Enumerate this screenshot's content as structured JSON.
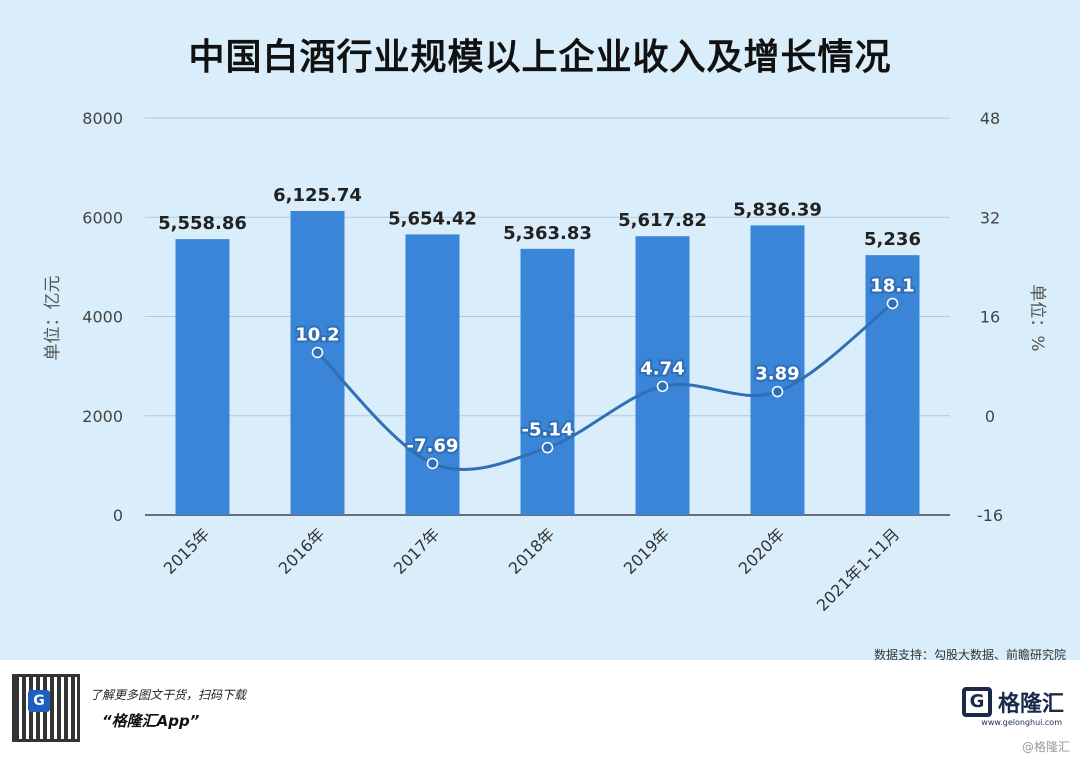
{
  "title": "中国白酒行业规模以上企业收入及增长情况",
  "chart_data": {
    "type": "bar",
    "title": "中国白酒行业规模以上企业收入及增长情况",
    "categories": [
      "2015年",
      "2016年",
      "2017年",
      "2018年",
      "2019年",
      "2020年",
      "2021年1-11月"
    ],
    "series": [
      {
        "type": "bar",
        "values": [
          5558.86,
          6125.74,
          5654.42,
          5363.83,
          5617.82,
          5836.39,
          5236
        ],
        "labels": [
          "5,558.86",
          "6,125.74",
          "5,654.42",
          "5,363.83",
          "5,617.82",
          "5,836.39",
          "5,236"
        ]
      },
      {
        "type": "line",
        "axis": "right",
        "values": [
          null,
          10.2,
          -7.69,
          -5.14,
          4.74,
          3.89,
          18.1
        ],
        "labels": [
          "",
          "10.2",
          "-7.69",
          "-5.14",
          "4.74",
          "3.89",
          "18.1"
        ]
      }
    ],
    "ylabel": "单位：亿元",
    "y2label": "单位：%",
    "ylim": [
      0,
      8000
    ],
    "y2lim": [
      -16,
      48
    ],
    "yticks": [
      "0",
      "2000",
      "4000",
      "6000",
      "8000"
    ],
    "y2ticks": [
      "-16",
      "0",
      "16",
      "32",
      "48"
    ],
    "grid": true,
    "colors": {
      "bar": "#3a85d8",
      "line": "#2f6fb5"
    }
  },
  "source": "数据支持：勾股大数据、前瞻研究院",
  "footer": {
    "promo_line1": "了解更多图文干货，扫码下载",
    "promo_line2": "“格隆汇App”",
    "brand": "格隆汇",
    "brand_domain": "www.gelonghui.com",
    "watermark": "@格隆汇"
  }
}
